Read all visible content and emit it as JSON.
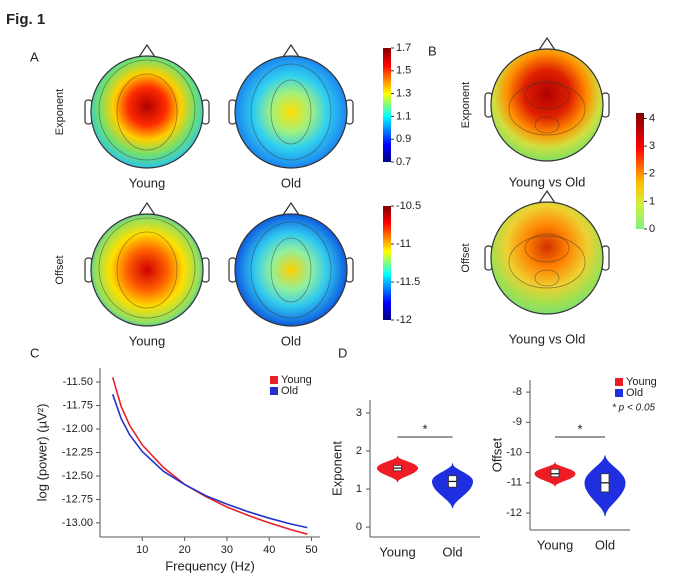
{
  "figure_label": "Fig. 1",
  "panel_a": {
    "label": "A",
    "rows": [
      {
        "label": "Exponent",
        "maps": [
          "Young",
          "Old"
        ],
        "clim": [
          0.7,
          1.7
        ],
        "colorbar_ticks": [
          0.7,
          0.9,
          1.1,
          1.3,
          1.5,
          1.7
        ]
      },
      {
        "label": "Offset",
        "maps": [
          "Young",
          "Old"
        ],
        "clim": [
          -12,
          -10.5
        ],
        "colorbar_ticks": [
          -12,
          -11.5,
          -11,
          -10.5
        ]
      }
    ]
  },
  "panel_b": {
    "label": "B",
    "rows": [
      {
        "label": "Exponent",
        "map": "Young vs Old"
      },
      {
        "label": "Offset",
        "map": "Young vs Old"
      }
    ],
    "clim": [
      0,
      4.2
    ],
    "colorbar_ticks": [
      0,
      1,
      2,
      3,
      4
    ]
  },
  "chart_data": [
    {
      "type": "line",
      "panel_label": "C",
      "x": [
        3,
        5,
        7,
        10,
        15,
        20,
        25,
        30,
        35,
        40,
        45,
        49
      ],
      "series": [
        {
          "name": "Young",
          "color": "#e8202a",
          "values": [
            -11.45,
            -11.76,
            -11.96,
            -12.17,
            -12.41,
            -12.59,
            -12.72,
            -12.83,
            -12.92,
            -13.0,
            -13.07,
            -13.12
          ]
        },
        {
          "name": "Old",
          "color": "#2233cc",
          "values": [
            -11.63,
            -11.89,
            -12.06,
            -12.24,
            -12.45,
            -12.59,
            -12.71,
            -12.8,
            -12.88,
            -12.95,
            -13.01,
            -13.05
          ]
        }
      ],
      "xlabel": "Frequency (Hz)",
      "ylabel": "log (power) (µV²)",
      "xlim": [
        0,
        52
      ],
      "xticks": [
        10,
        20,
        30,
        40,
        50
      ],
      "ylim": [
        -13.15,
        -11.35
      ],
      "yticks": [
        {
          "value": -11.5,
          "label": "-11.50"
        },
        {
          "value": -11.75,
          "label": "-11.75"
        },
        {
          "value": -12,
          "label": "-12.00"
        },
        {
          "value": -12.25,
          "label": "-12.25"
        },
        {
          "value": -12.5,
          "label": "-12.50"
        },
        {
          "value": -12.75,
          "label": "-12.75"
        },
        {
          "value": -13,
          "label": "-13.00"
        }
      ],
      "legend": "upper right"
    },
    {
      "type": "violin",
      "panel_label": "D",
      "categories": [
        "Young",
        "Old"
      ],
      "colors": [
        "#ee1c25",
        "#1f2fe0"
      ],
      "min": [
        1.2,
        0.5
      ],
      "q1": [
        1.48,
        1.05
      ],
      "median": [
        1.55,
        1.2
      ],
      "q3": [
        1.62,
        1.35
      ],
      "max": [
        1.85,
        1.65
      ],
      "ylabel": "Exponent",
      "ylim": [
        -0.26,
        3.34
      ],
      "yticks": [
        0,
        1,
        2,
        3
      ],
      "significance": "*"
    },
    {
      "type": "violin",
      "categories": [
        "Young",
        "Old"
      ],
      "colors": [
        "#ee1c25",
        "#1f2fe0"
      ],
      "min": [
        -11.1,
        -12.1
      ],
      "q1": [
        -10.8,
        -11.3
      ],
      "median": [
        -10.7,
        -11.0
      ],
      "q3": [
        -10.55,
        -10.7
      ],
      "max": [
        -10.35,
        -10.1
      ],
      "ylabel": "Offset",
      "ylim": [
        -12.56,
        -7.6
      ],
      "yticks": [
        -8,
        -9,
        -10,
        -11,
        -12
      ],
      "significance": "*",
      "legend": "upper right",
      "note": "* p < 0.05"
    }
  ]
}
